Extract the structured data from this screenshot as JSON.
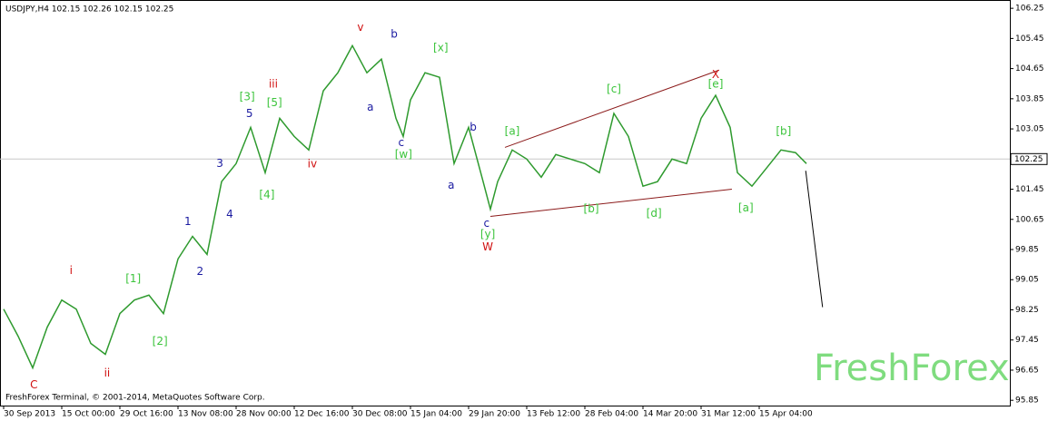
{
  "chart_data": {
    "type": "line",
    "title": "USDJPY,H4  102.15 102.26 102.15 102.25",
    "footer": "FreshForex Terminal, © 2001-2014, MetaQuotes Software Corp.",
    "watermark": "FreshForex",
    "color": "#2e9a2e",
    "x": [
      0,
      0.25,
      0.5,
      0.75,
      1,
      1.25,
      1.5,
      1.75,
      2,
      2.25,
      2.5,
      2.75,
      3,
      3.25,
      3.5,
      3.75,
      4,
      4.25,
      4.5,
      4.75,
      5,
      5.25,
      5.5,
      5.75,
      6,
      6.25,
      6.5,
      6.75,
      6.875,
      7,
      7.25,
      7.5,
      7.75,
      8,
      8.25,
      8.375,
      8.5,
      8.75,
      9,
      9.25,
      9.5,
      9.75,
      10,
      10.25,
      10.5,
      10.75,
      11,
      11.25,
      11.5,
      11.75,
      12,
      12.25,
      12.5,
      12.625,
      12.875,
      13.125,
      13.375,
      13.625,
      13.8125
    ],
    "values": [
      98.27,
      97.55,
      96.71,
      97.79,
      98.51,
      98.27,
      97.36,
      97.07,
      98.15,
      98.51,
      98.64,
      98.15,
      99.6,
      100.2,
      99.72,
      101.65,
      102.13,
      103.09,
      101.89,
      103.33,
      102.85,
      102.49,
      104.06,
      104.54,
      105.26,
      104.54,
      104.9,
      103.33,
      102.85,
      103.82,
      104.54,
      104.42,
      102.13,
      103.09,
      101.65,
      100.92,
      101.65,
      102.49,
      102.25,
      101.77,
      102.37,
      102.25,
      102.13,
      101.89,
      103.46,
      102.85,
      101.53,
      101.65,
      102.25,
      102.13,
      103.33,
      103.94,
      103.09,
      101.89,
      101.53,
      102.01,
      102.49,
      102.42,
      102.13
    ],
    "current_price": 102.25,
    "xlim": [
      -0.0625,
      17.3125
    ],
    "ylim": [
      95.71,
      106.47
    ],
    "xticks": [
      {
        "value": 0,
        "label": "30 Sep 2013"
      },
      {
        "value": 1,
        "label": "15 Oct 00:00"
      },
      {
        "value": 2,
        "label": "29 Oct 16:00"
      },
      {
        "value": 3,
        "label": "13 Nov 08:00"
      },
      {
        "value": 4,
        "label": "28 Nov 00:00"
      },
      {
        "value": 5,
        "label": "12 Dec 16:00"
      },
      {
        "value": 6,
        "label": "30 Dec 08:00"
      },
      {
        "value": 7,
        "label": "15 Jan 04:00"
      },
      {
        "value": 8,
        "label": "29 Jan 20:00"
      },
      {
        "value": 9,
        "label": "13 Feb 12:00"
      },
      {
        "value": 10,
        "label": "28 Feb 04:00"
      },
      {
        "value": 11,
        "label": "14 Mar 20:00"
      },
      {
        "value": 12,
        "label": "31 Mar 12:00"
      },
      {
        "value": 13,
        "label": "15 Apr 04:00"
      }
    ],
    "yticks": [
      106.25,
      105.45,
      104.65,
      103.85,
      103.05,
      102.25,
      101.45,
      100.65,
      99.85,
      99.05,
      98.25,
      97.45,
      96.65,
      95.85
    ],
    "trendlines": [
      {
        "x": [
          8.375,
          12.53
        ],
        "y": [
          100.73,
          101.45
        ],
        "color": "#8b1a1a"
      },
      {
        "x": [
          8.625,
          12.31
        ],
        "y": [
          102.56,
          104.61
        ],
        "color": "#8b1a1a"
      },
      {
        "x": [
          13.8,
          14.09
        ],
        "y": [
          101.94,
          98.32
        ],
        "color": "#000000"
      }
    ],
    "annotations": [
      {
        "text": "C",
        "x": 0.52,
        "y": 96.25,
        "color": "#d01010"
      },
      {
        "text": "i",
        "x": 1.16,
        "y": 99.29,
        "color": "#d01010"
      },
      {
        "text": "ii",
        "x": 1.78,
        "y": 96.56,
        "color": "#d01010"
      },
      {
        "text": "[1]",
        "x": 2.23,
        "y": 99.07,
        "color": "#3cc43c"
      },
      {
        "text": "[2]",
        "x": 2.69,
        "y": 97.41,
        "color": "#3cc43c"
      },
      {
        "text": "1",
        "x": 3.17,
        "y": 100.59,
        "color": "#1a1aa0"
      },
      {
        "text": "2",
        "x": 3.38,
        "y": 99.26,
        "color": "#1a1aa0"
      },
      {
        "text": "3",
        "x": 3.72,
        "y": 102.13,
        "color": "#1a1aa0"
      },
      {
        "text": "4",
        "x": 3.89,
        "y": 100.78,
        "color": "#1a1aa0"
      },
      {
        "text": "[3]",
        "x": 4.19,
        "y": 103.89,
        "color": "#3cc43c"
      },
      {
        "text": "5",
        "x": 4.23,
        "y": 103.45,
        "color": "#1a1aa0"
      },
      {
        "text": "[4]",
        "x": 4.53,
        "y": 101.29,
        "color": "#3cc43c"
      },
      {
        "text": "[5]",
        "x": 4.66,
        "y": 103.74,
        "color": "#3cc43c"
      },
      {
        "text": "iii",
        "x": 4.64,
        "y": 104.23,
        "color": "#d01010"
      },
      {
        "text": "iv",
        "x": 5.31,
        "y": 102.11,
        "color": "#d01010"
      },
      {
        "text": "v",
        "x": 6.14,
        "y": 105.74,
        "color": "#d01010"
      },
      {
        "text": "b",
        "x": 6.72,
        "y": 105.55,
        "color": "#1a1aa0"
      },
      {
        "text": "a",
        "x": 6.31,
        "y": 103.62,
        "color": "#1a1aa0"
      },
      {
        "text": "c",
        "x": 6.84,
        "y": 102.68,
        "color": "#1a1aa0"
      },
      {
        "text": "[w]",
        "x": 6.88,
        "y": 102.37,
        "color": "#3cc43c"
      },
      {
        "text": "[x]",
        "x": 7.52,
        "y": 105.19,
        "color": "#3cc43c"
      },
      {
        "text": "b",
        "x": 8.08,
        "y": 103.09,
        "color": "#1a1aa0"
      },
      {
        "text": "a",
        "x": 7.7,
        "y": 101.55,
        "color": "#1a1aa0"
      },
      {
        "text": "c",
        "x": 8.31,
        "y": 100.54,
        "color": "#1a1aa0"
      },
      {
        "text": "[y]",
        "x": 8.33,
        "y": 100.25,
        "color": "#3cc43c"
      },
      {
        "text": "W",
        "x": 8.33,
        "y": 99.91,
        "color": "#d01010"
      },
      {
        "text": "[a]",
        "x": 8.75,
        "y": 102.98,
        "color": "#3cc43c"
      },
      {
        "text": "[b]",
        "x": 10.11,
        "y": 100.92,
        "color": "#3cc43c"
      },
      {
        "text": "[c]",
        "x": 10.5,
        "y": 104.1,
        "color": "#3cc43c"
      },
      {
        "text": "[d]",
        "x": 11.19,
        "y": 100.8,
        "color": "#3cc43c"
      },
      {
        "text": "X",
        "x": 12.25,
        "y": 104.49,
        "color": "#d01010"
      },
      {
        "text": "[e]",
        "x": 12.25,
        "y": 104.23,
        "color": "#3cc43c"
      },
      {
        "text": "[a]",
        "x": 12.77,
        "y": 100.95,
        "color": "#3cc43c"
      },
      {
        "text": "[b]",
        "x": 13.42,
        "y": 102.98,
        "color": "#3cc43c"
      }
    ]
  }
}
